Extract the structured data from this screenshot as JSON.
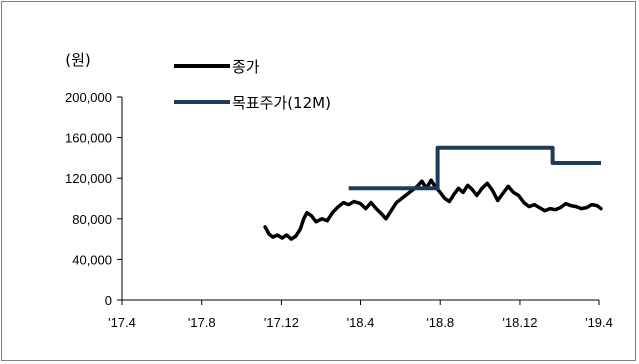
{
  "chart_data": {
    "type": "line",
    "unit_label": "(원)",
    "ylim": [
      0,
      200000
    ],
    "y_ticks": [
      0,
      40000,
      80000,
      120000,
      160000,
      200000
    ],
    "y_tick_labels": [
      "0",
      "40,000",
      "80,000",
      "120,000",
      "160,000",
      "200,000"
    ],
    "x_ticks": [
      "2017-04",
      "2017-08",
      "2017-12",
      "2018-04",
      "2018-08",
      "2018-12",
      "2019-04"
    ],
    "x_tick_labels": [
      "'17.4",
      "'17.8",
      "'17.12",
      "'18.4",
      "'18.8",
      "'18.12",
      "'19.4"
    ],
    "xlim": [
      "2017-04",
      "2019-04"
    ],
    "grid": false,
    "legend_position": "top-left",
    "series": [
      {
        "name": "종가",
        "color": "#000000",
        "points": [
          [
            "2017-11-06",
            72000
          ],
          [
            "2017-11-12",
            65000
          ],
          [
            "2017-11-18",
            62000
          ],
          [
            "2017-11-25",
            64000
          ],
          [
            "2017-12-02",
            61000
          ],
          [
            "2017-12-09",
            64000
          ],
          [
            "2017-12-16",
            60000
          ],
          [
            "2017-12-23",
            63000
          ],
          [
            "2017-12-30",
            70000
          ],
          [
            "2018-01-04",
            80000
          ],
          [
            "2018-01-09",
            86000
          ],
          [
            "2018-01-16",
            83000
          ],
          [
            "2018-01-23",
            77000
          ],
          [
            "2018-02-01",
            80000
          ],
          [
            "2018-02-09",
            78000
          ],
          [
            "2018-02-17",
            86000
          ],
          [
            "2018-02-26",
            92000
          ],
          [
            "2018-03-06",
            96000
          ],
          [
            "2018-03-14",
            94000
          ],
          [
            "2018-03-22",
            97000
          ],
          [
            "2018-04-01",
            95000
          ],
          [
            "2018-04-09",
            90000
          ],
          [
            "2018-04-17",
            96000
          ],
          [
            "2018-04-25",
            90000
          ],
          [
            "2018-05-03",
            85000
          ],
          [
            "2018-05-10",
            80000
          ],
          [
            "2018-05-18",
            88000
          ],
          [
            "2018-05-26",
            96000
          ],
          [
            "2018-06-03",
            100000
          ],
          [
            "2018-06-11",
            104000
          ],
          [
            "2018-06-19",
            108000
          ],
          [
            "2018-06-27",
            112000
          ],
          [
            "2018-07-04",
            117000
          ],
          [
            "2018-07-11",
            110000
          ],
          [
            "2018-07-18",
            118000
          ],
          [
            "2018-07-24",
            112000
          ],
          [
            "2018-08-01",
            106000
          ],
          [
            "2018-08-08",
            100000
          ],
          [
            "2018-08-15",
            97000
          ],
          [
            "2018-08-22",
            104000
          ],
          [
            "2018-08-29",
            110000
          ],
          [
            "2018-09-05",
            106000
          ],
          [
            "2018-09-12",
            113000
          ],
          [
            "2018-09-19",
            109000
          ],
          [
            "2018-09-26",
            103000
          ],
          [
            "2018-10-04",
            110000
          ],
          [
            "2018-10-12",
            115000
          ],
          [
            "2018-10-20",
            108000
          ],
          [
            "2018-10-28",
            98000
          ],
          [
            "2018-11-05",
            105000
          ],
          [
            "2018-11-13",
            112000
          ],
          [
            "2018-11-21",
            106000
          ],
          [
            "2018-11-29",
            103000
          ],
          [
            "2018-12-07",
            96000
          ],
          [
            "2018-12-15",
            92000
          ],
          [
            "2018-12-23",
            94000
          ],
          [
            "2018-12-31",
            91000
          ],
          [
            "2019-01-08",
            88000
          ],
          [
            "2019-01-16",
            90000
          ],
          [
            "2019-01-24",
            89000
          ],
          [
            "2019-02-01",
            91000
          ],
          [
            "2019-02-09",
            95000
          ],
          [
            "2019-02-17",
            93000
          ],
          [
            "2019-02-25",
            92000
          ],
          [
            "2019-03-05",
            90000
          ],
          [
            "2019-03-13",
            91000
          ],
          [
            "2019-03-21",
            94000
          ],
          [
            "2019-03-29",
            93000
          ],
          [
            "2019-04-04",
            90000
          ]
        ]
      },
      {
        "name": "목표주가(12M)",
        "color": "#1f3a5f",
        "step": true,
        "points": [
          [
            "2018-03-14",
            110000
          ],
          [
            "2018-07-28",
            110000
          ],
          [
            "2018-07-28",
            150000
          ],
          [
            "2019-01-20",
            150000
          ],
          [
            "2019-01-20",
            135000
          ],
          [
            "2019-04-04",
            135000
          ]
        ]
      }
    ]
  }
}
